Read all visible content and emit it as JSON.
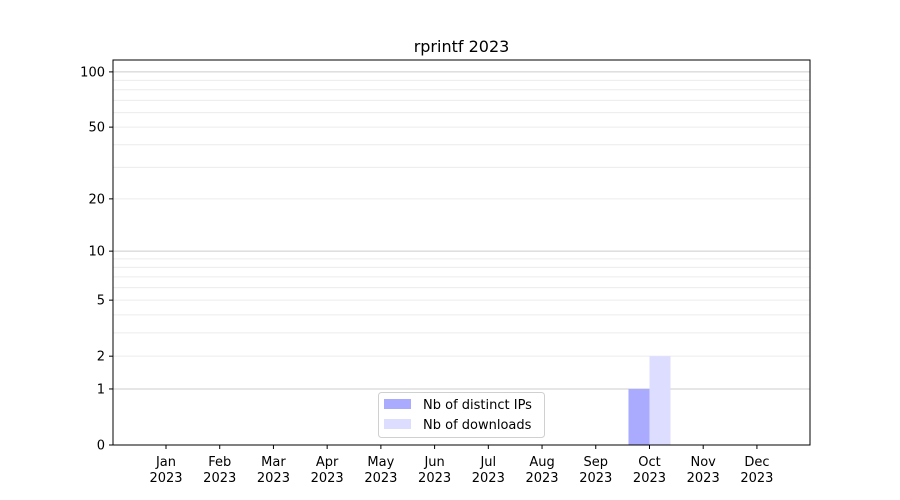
{
  "chart_data": {
    "type": "bar",
    "title": "rprintf 2023",
    "xlabel": "",
    "ylabel": "",
    "categories": [
      "Jan\n2023",
      "Feb\n2023",
      "Mar\n2023",
      "Apr\n2023",
      "May\n2023",
      "Jun\n2023",
      "Jul\n2023",
      "Aug\n2023",
      "Sep\n2023",
      "Oct\n2023",
      "Nov\n2023",
      "Dec\n2023"
    ],
    "y_scale": "log(1+y)",
    "ylim": [
      0,
      116
    ],
    "yticks": [
      0,
      1,
      2,
      5,
      10,
      20,
      50,
      100
    ],
    "grid": true,
    "legend_position": "bottom-center",
    "series": [
      {
        "name": "Nb of distinct IPs",
        "color": "#aaaaff",
        "values": [
          0,
          0,
          0,
          0,
          0,
          0,
          0,
          0,
          0,
          1,
          0,
          0
        ]
      },
      {
        "name": "Nb of downloads",
        "color": "#ddddff",
        "values": [
          0,
          0,
          0,
          0,
          0,
          0,
          0,
          0,
          0,
          2,
          0,
          0
        ]
      }
    ]
  }
}
